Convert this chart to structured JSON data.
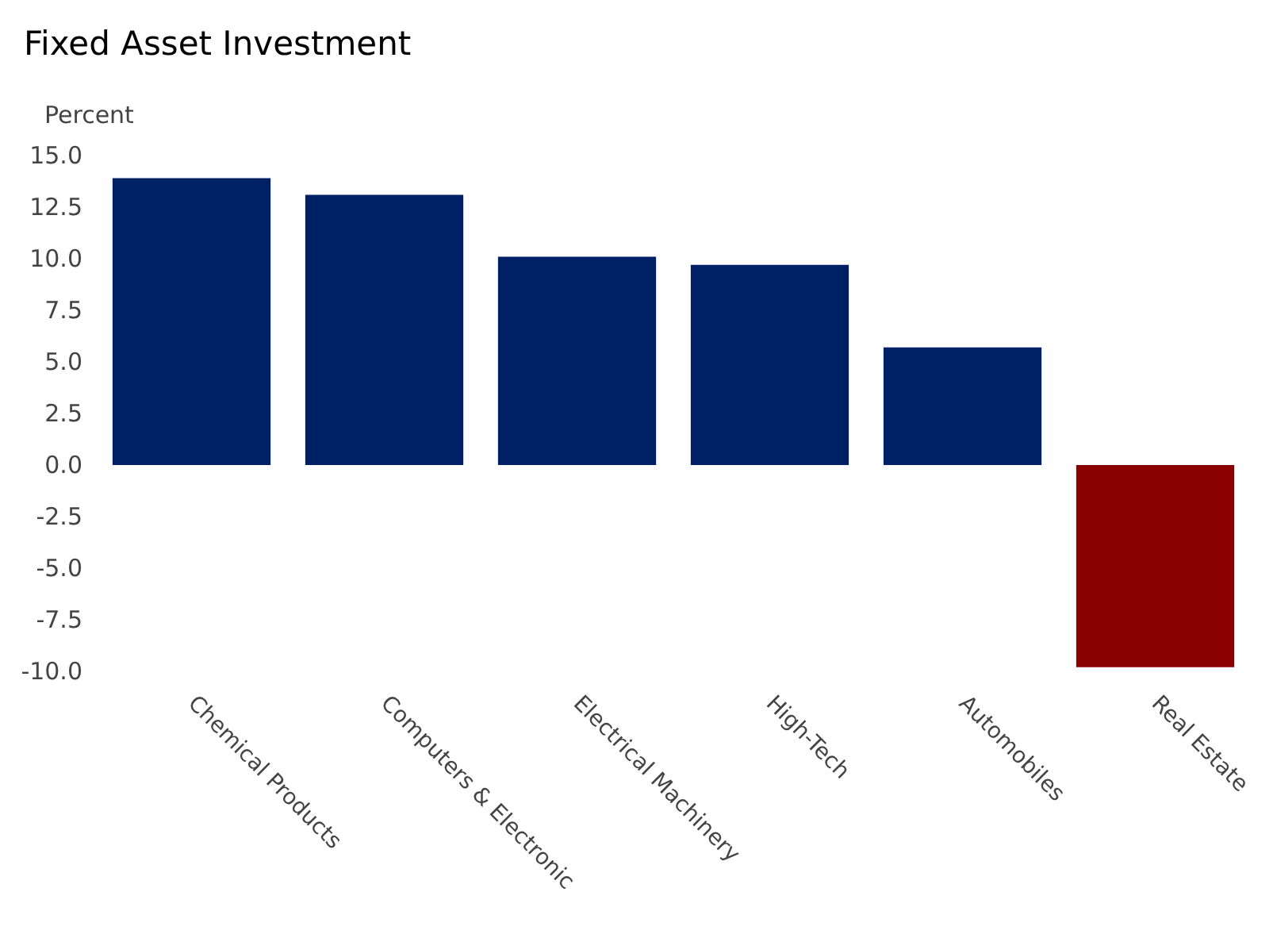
{
  "chart_data": {
    "type": "bar",
    "title": "Fixed Asset Investment",
    "ylabel": "Percent",
    "categories": [
      "Chemical Products",
      "Computers & Electronic",
      "Electrical Machinery",
      "High-Tech",
      "Automobiles",
      "Real Estate"
    ],
    "values": [
      13.9,
      13.1,
      10.1,
      9.7,
      5.7,
      -9.8
    ],
    "colors": [
      "#002066",
      "#002066",
      "#002066",
      "#002066",
      "#002066",
      "#8b0000"
    ],
    "ylim": [
      -10,
      15
    ],
    "yticks": [
      {
        "value": -10,
        "label": "-10.0"
      },
      {
        "value": -7.5,
        "label": "-7.5"
      },
      {
        "value": -5,
        "label": "-5.0"
      },
      {
        "value": -2.5,
        "label": "-2.5"
      },
      {
        "value": 0,
        "label": "0.0"
      },
      {
        "value": 2.5,
        "label": "2.5"
      },
      {
        "value": 5,
        "label": "5.0"
      },
      {
        "value": 7.5,
        "label": "7.5"
      },
      {
        "value": 10,
        "label": "10.0"
      },
      {
        "value": 12.5,
        "label": "12.5"
      },
      {
        "value": 15,
        "label": "15.0"
      }
    ],
    "grid": false
  }
}
